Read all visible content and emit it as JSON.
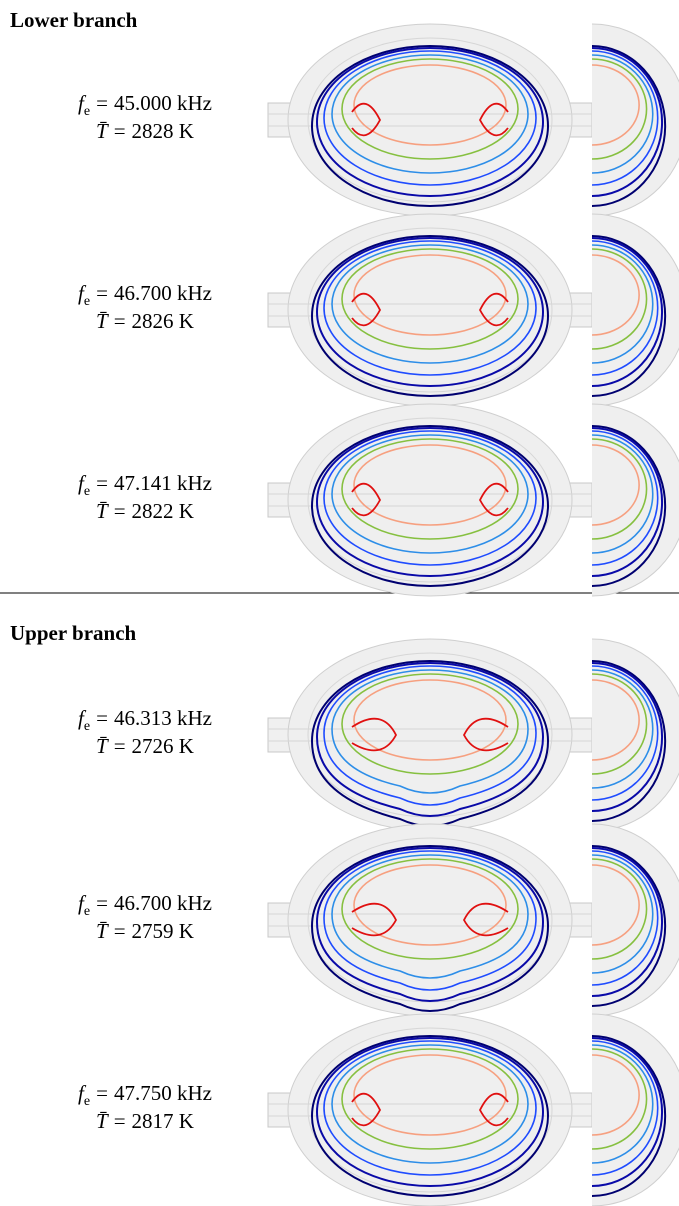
{
  "notation": {
    "freq_symbol": "f",
    "freq_subscript": "e",
    "temp_symbol": "T̄",
    "equals": "="
  },
  "sections": [
    {
      "title": "Lower branch",
      "rows": [
        {
          "frequency": "45.000 kHz",
          "temperature": "2828 K"
        },
        {
          "frequency": "46.700 kHz",
          "temperature": "2826 K"
        },
        {
          "frequency": "47.141 kHz",
          "temperature": "2822 K"
        }
      ]
    },
    {
      "title": "Upper branch",
      "rows": [
        {
          "frequency": "46.313 kHz",
          "temperature": "2726 K"
        },
        {
          "frequency": "46.700 kHz",
          "temperature": "2759 K"
        },
        {
          "frequency": "47.750 kHz",
          "temperature": "2817 K"
        }
      ]
    }
  ]
}
